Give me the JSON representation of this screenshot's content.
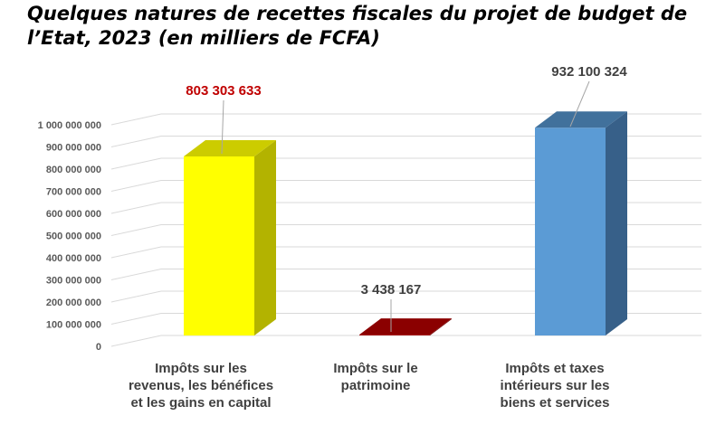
{
  "chart_data": {
    "type": "bar",
    "title": "Quelques natures de recettes fiscales du projet de budget de l’Etat, 2023 (en milliers de FCFA)",
    "categories": [
      [
        "Impôts sur les",
        "revenus, les bénéfices",
        "et les gains en capital"
      ],
      [
        "Impôts sur le",
        "patrimoine"
      ],
      [
        "Impôts et taxes",
        "intérieurs sur les",
        "biens et services"
      ]
    ],
    "values": [
      803303633,
      3438167,
      932100324
    ],
    "data_labels": [
      "803 303 633",
      "3 438 167",
      "932 100 324"
    ],
    "ylim": [
      0,
      1000000000
    ],
    "yticks": [
      0,
      100000000,
      200000000,
      300000000,
      400000000,
      500000000,
      600000000,
      700000000,
      800000000,
      900000000,
      1000000000
    ],
    "ytick_labels": [
      "0",
      "100 000 000",
      "200 000 000",
      "300 000 000",
      "400 000 000",
      "500 000 000",
      "600 000 000",
      "700 000 000",
      "800 000 000",
      "900 000 000",
      "1 000 000 000"
    ],
    "grid": true,
    "xlabel": "",
    "ylabel": "",
    "colors": {
      "bars": [
        {
          "front": "#FFFF00",
          "side": "#B3B300",
          "top": "#CCCC00"
        },
        {
          "front": "#A00000",
          "side": "#700000",
          "top": "#8B0000"
        },
        {
          "front": "#5B9BD5",
          "side": "#376089",
          "top": "#41719C"
        }
      ],
      "data_label_colors": [
        "#C00000",
        "#404040",
        "#404040"
      ],
      "grid": "#D9D9D9"
    }
  }
}
